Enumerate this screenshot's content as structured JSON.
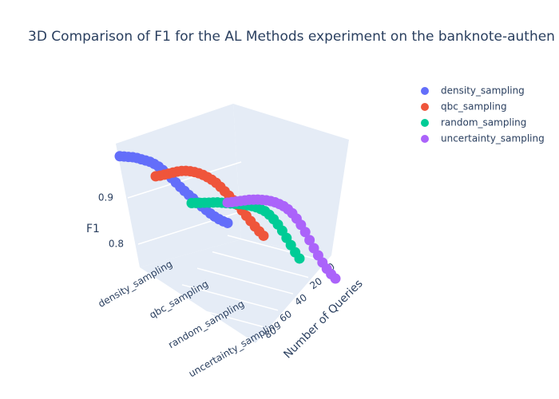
{
  "chart_data": {
    "type": "scatter3d",
    "title": "3D Comparison of F1 for the AL Methods experiment on the banknote-authen",
    "x_label": "Number of Queries",
    "z_label": "F1",
    "x": [
      0,
      4,
      8,
      12,
      16,
      20,
      24,
      28,
      32,
      36,
      40,
      44,
      48,
      52,
      56,
      60,
      64,
      68,
      72,
      76,
      80,
      84,
      88,
      92,
      96,
      100
    ],
    "categories": [
      "density_sampling",
      "qbc_sampling",
      "random_sampling",
      "uncertainty_sampling"
    ],
    "series": [
      {
        "name": "density_sampling",
        "color": "#636efa",
        "values": [
          0.975,
          0.976,
          0.977,
          0.978,
          0.978,
          0.977,
          0.976,
          0.975,
          0.972,
          0.968,
          0.962,
          0.955,
          0.948,
          0.94,
          0.932,
          0.925,
          0.918,
          0.912,
          0.905,
          0.898,
          0.892,
          0.886,
          0.881,
          0.877,
          0.874,
          0.872
        ]
      },
      {
        "name": "qbc_sampling",
        "color": "#ef553b",
        "values": [
          0.945,
          0.948,
          0.952,
          0.956,
          0.96,
          0.964,
          0.967,
          0.969,
          0.97,
          0.97,
          0.969,
          0.967,
          0.964,
          0.96,
          0.955,
          0.948,
          0.94,
          0.932,
          0.924,
          0.915,
          0.905,
          0.895,
          0.885,
          0.875,
          0.866,
          0.858
        ]
      },
      {
        "name": "random_sampling",
        "color": "#00cc96",
        "values": [
          0.9,
          0.902,
          0.904,
          0.906,
          0.908,
          0.91,
          0.912,
          0.913,
          0.914,
          0.915,
          0.916,
          0.917,
          0.918,
          0.918,
          0.918,
          0.917,
          0.915,
          0.912,
          0.906,
          0.898,
          0.888,
          0.876,
          0.862,
          0.848,
          0.834,
          0.822
        ]
      },
      {
        "name": "uncertainty_sampling",
        "color": "#ab63fa",
        "values": [
          0.915,
          0.918,
          0.921,
          0.924,
          0.927,
          0.93,
          0.932,
          0.934,
          0.935,
          0.936,
          0.936,
          0.935,
          0.933,
          0.93,
          0.925,
          0.918,
          0.908,
          0.896,
          0.882,
          0.866,
          0.85,
          0.836,
          0.822,
          0.81,
          0.8,
          0.792
        ]
      }
    ],
    "xlim": [
      0,
      100
    ],
    "xticks": [
      0,
      20,
      40,
      60,
      80
    ],
    "zlim": [
      0.77,
      1.0
    ],
    "zticks": [
      0.8,
      0.9
    ],
    "legend": "top-right",
    "grid": true
  }
}
